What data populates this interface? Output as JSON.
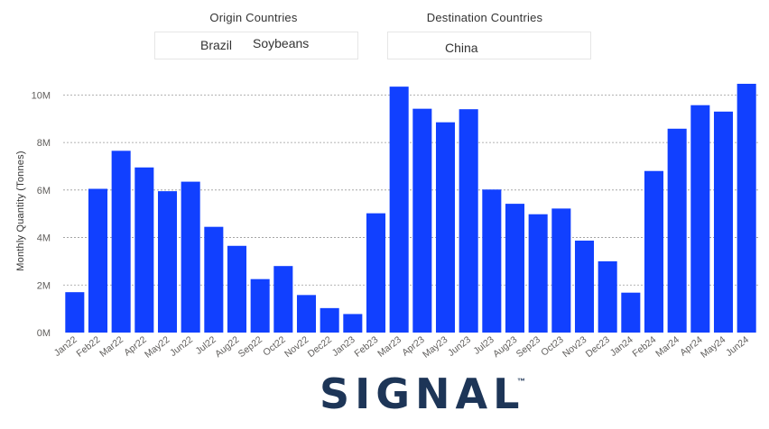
{
  "filters": {
    "origin": {
      "title": "Origin Countries",
      "country": "Brazil",
      "commodity": "Soybeans"
    },
    "destination": {
      "title": "Destination Countries",
      "country": "China"
    }
  },
  "chart_data": {
    "type": "bar",
    "title": "",
    "xlabel": "",
    "ylabel": "Monthly Quantity (Tonnes)",
    "ylim": [
      0,
      11000000
    ],
    "yticks": [
      0,
      2000000,
      4000000,
      6000000,
      8000000,
      10000000
    ],
    "ytick_labels": [
      "0M",
      "2M",
      "4M",
      "6M",
      "8M",
      "10M"
    ],
    "grid": true,
    "bar_color": "#1140ff",
    "categories": [
      "Jan22",
      "Feb22",
      "Mar22",
      "Apr22",
      "May22",
      "Jun22",
      "Jul22",
      "Aug22",
      "Sep22",
      "Oct22",
      "Nov22",
      "Dec22",
      "Jan23",
      "Feb23",
      "Mar23",
      "Apr23",
      "May23",
      "Jun23",
      "Jul23",
      "Aug23",
      "Sep23",
      "Oct23",
      "Nov23",
      "Dec23",
      "Jan24",
      "Feb24",
      "Mar24",
      "Apr24",
      "May24",
      "Jun24"
    ],
    "values": [
      1700000,
      6050000,
      7650000,
      6950000,
      5950000,
      6350000,
      4450000,
      3650000,
      2250000,
      2800000,
      1580000,
      1030000,
      780000,
      5020000,
      10350000,
      9420000,
      8850000,
      9400000,
      6020000,
      5420000,
      4980000,
      5220000,
      3870000,
      3000000,
      1680000,
      6800000,
      8580000,
      9570000,
      9300000,
      10470000
    ]
  },
  "brand": {
    "logo_text": "SIGNAL",
    "trademark": "™",
    "color": "#1d3557"
  }
}
